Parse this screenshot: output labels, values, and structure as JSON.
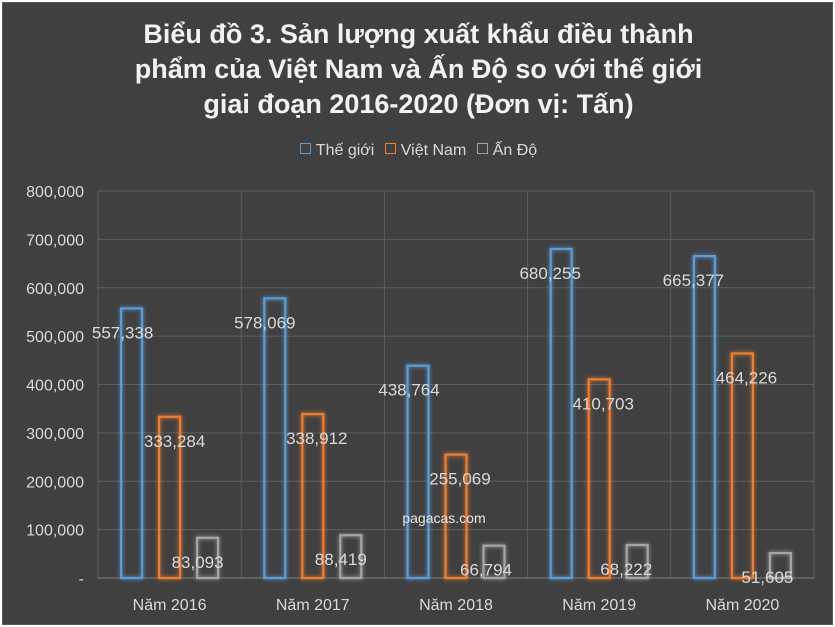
{
  "chart_data": {
    "type": "bar",
    "title_lines": [
      "Biểu đồ 3. Sản lượng xuất khẩu điều thành",
      "phẩm của Việt Nam và Ấn Độ so với thế giới",
      "giai đoạn 2016-2020 (Đơn vị: Tấn)"
    ],
    "categories": [
      "Năm 2016",
      "Năm 2017",
      "Năm 2018",
      "Năm 2019",
      "Năm 2020"
    ],
    "series": [
      {
        "name": "Thế giới",
        "values": [
          557338,
          578069,
          438764,
          680255,
          665377
        ],
        "labels": [
          "557,338",
          "578,069",
          "438,764",
          "680,255",
          "665,377"
        ],
        "color": "#5b9bd5"
      },
      {
        "name": "Việt Nam",
        "values": [
          333284,
          338912,
          255069,
          410703,
          464226
        ],
        "labels": [
          "333,284",
          "338,912",
          "255,069",
          "410,703",
          "464,226"
        ],
        "color": "#ed7d31"
      },
      {
        "name": "Ấn Độ",
        "values": [
          83093,
          88419,
          66794,
          68222,
          51605
        ],
        "labels": [
          "83,093",
          "88,419",
          "66,794",
          "68,222",
          "51,605"
        ],
        "color": "#a5a5a5"
      }
    ],
    "y_ticks": [
      "-",
      "100,000",
      "200,000",
      "300,000",
      "400,000",
      "500,000",
      "600,000",
      "700,000",
      "800,000"
    ],
    "ylim": [
      0,
      800000
    ],
    "grid": true,
    "legend_position": "top",
    "watermark": "pagacas.com"
  }
}
